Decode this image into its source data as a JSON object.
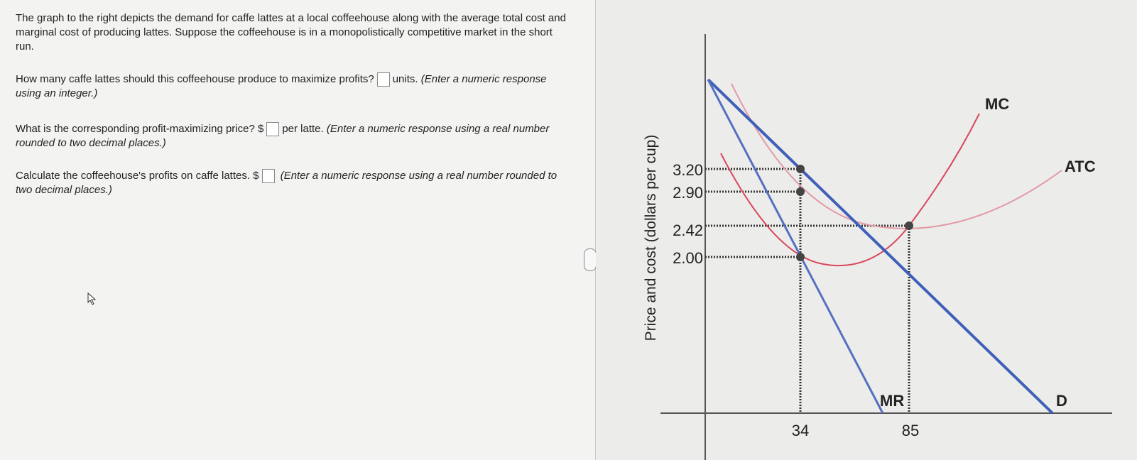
{
  "question": {
    "intro": "The graph to the right depicts the demand for caffe lattes at a local coffeehouse along with the average total cost and marginal cost of producing lattes. Suppose the coffeehouse is in a monopolistically competitive market in the short run.",
    "q1": {
      "before": "How many caffe lattes should this coffeehouse produce to maximize profits?",
      "after": "units.",
      "hint": "(Enter a numeric response using an integer.)"
    },
    "q2": {
      "before": "What is the corresponding profit-maximizing price? $",
      "after": "per latte.",
      "hint": "(Enter a numeric response using a real number rounded to two decimal places.)"
    },
    "q3": {
      "before": "Calculate the coffeehouse's profits on caffe lattes. $",
      "hint": "(Enter a numeric response using a real number rounded to two decimal places.)"
    }
  },
  "graph": {
    "y_label": "Price and cost (dollars per cup)",
    "y_ticks": [
      "3.20",
      "2.90",
      "2.42",
      "2.00"
    ],
    "x_ticks": [
      "34",
      "85"
    ],
    "curve_labels": {
      "mc": "MC",
      "atc": "ATC",
      "demand": "D",
      "mr": "MR"
    }
  }
}
